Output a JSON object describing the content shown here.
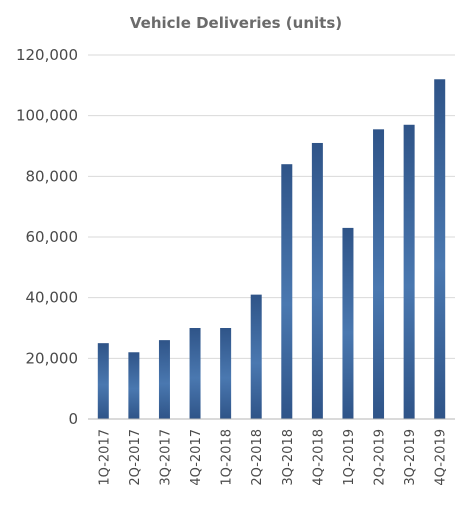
{
  "chart_data": {
    "type": "bar",
    "title": "Vehicle Deliveries (units)",
    "xlabel": "",
    "ylabel": "",
    "categories": [
      "1Q-2017",
      "2Q-2017",
      "3Q-2017",
      "4Q-2017",
      "1Q-2018",
      "2Q-2018",
      "3Q-2018",
      "4Q-2018",
      "1Q-2019",
      "2Q-2019",
      "3Q-2019",
      "4Q-2019"
    ],
    "values": [
      25000,
      22000,
      26000,
      30000,
      30000,
      41000,
      84000,
      91000,
      63000,
      95500,
      97000,
      112000
    ],
    "yticks": [
      "0",
      "20,000",
      "40,000",
      "60,000",
      "80,000",
      "100,000",
      "120,000"
    ],
    "ytick_values": [
      0,
      20000,
      40000,
      60000,
      80000,
      100000,
      120000
    ],
    "ylim": [
      0,
      120000
    ],
    "grid": true,
    "legend": "none",
    "colors": {
      "bar_top": "#2f5488",
      "bar_mid": "#4a78b0",
      "bar_bottom": "#2f5488",
      "grid": "#dadada",
      "axis": "#b5b5b5"
    }
  }
}
